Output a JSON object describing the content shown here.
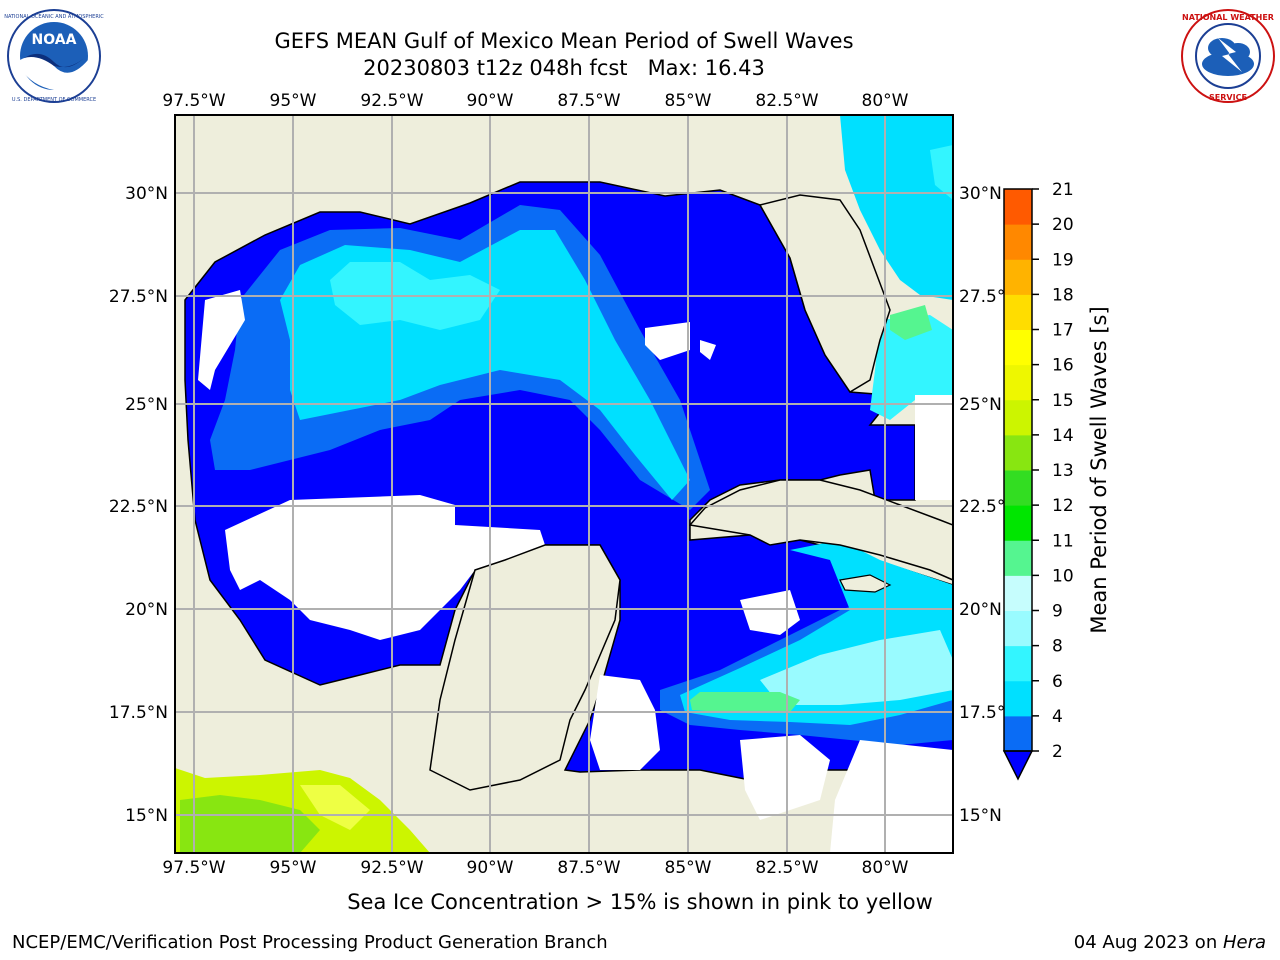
{
  "header": {
    "title_line1": "GEFS MEAN Gulf of Mexico Mean Period of Swell Waves",
    "title_line2": "20230803 t12z 048h fcst   Max: 16.43"
  },
  "logos": {
    "left": "NOAA",
    "left_ring_text": "NATIONAL OCEANIC AND ATMOSPHERIC ADMINISTRATION · U.S. DEPARTMENT OF COMMERCE",
    "right_ring_text": "NATIONAL WEATHER SERVICE"
  },
  "chart_data": {
    "type": "heatmap",
    "title": "GEFS MEAN Gulf of Mexico Mean Period of Swell Waves",
    "x_ticks": [
      "97.5°W",
      "95°W",
      "92.5°W",
      "90°W",
      "87.5°W",
      "85°W",
      "82.5°W",
      "80°W"
    ],
    "x_values": [
      -97.5,
      -95,
      -92.5,
      -90,
      -87.5,
      -85,
      -82.5,
      -80
    ],
    "y_ticks": [
      "30°N",
      "27.5°N",
      "25°N",
      "22.5°N",
      "20°N",
      "17.5°N",
      "15°N"
    ],
    "y_values": [
      30,
      27.5,
      25,
      22.5,
      20,
      17.5,
      15
    ],
    "xlim": [
      -98.1,
      -78.4
    ],
    "ylim": [
      14.0,
      31.8
    ],
    "grid": true,
    "colorbar": {
      "label": "Mean Period of Swell Waves [s]",
      "ticks": [
        "2",
        "4",
        "6",
        "8",
        "9",
        "10",
        "11",
        "12",
        "13",
        "14",
        "15",
        "16",
        "17",
        "18",
        "19",
        "20",
        "21"
      ],
      "levels": [
        2,
        4,
        6,
        8,
        9,
        10,
        11,
        12,
        13,
        14,
        15,
        16,
        17,
        18,
        19,
        20,
        21
      ],
      "colors": [
        "#0a6cf5",
        "#00e0ff",
        "#33f5ff",
        "#99fbff",
        "#c6fdfd",
        "#55f590",
        "#00e600",
        "#33dd22",
        "#88e611",
        "#ccf500",
        "#eef700",
        "#ffff00",
        "#ffdd00",
        "#ffb300",
        "#ff8800",
        "#ff5a00",
        "#ff2a00",
        "#ff0000"
      ],
      "under_color": "#0000ff",
      "extend": "min"
    },
    "colors": {
      "land": "#eeeedc",
      "no_data": "#ffffff",
      "coast": "#000000",
      "grid": "#b0b0b0"
    }
  },
  "note": "Sea Ice Concentration > 15% is shown in pink to yellow",
  "footer": {
    "left": "NCEP/EMC/Verification Post Processing Product Generation Branch",
    "right_date": "04 Aug 2023 on ",
    "right_host": "Hera"
  }
}
